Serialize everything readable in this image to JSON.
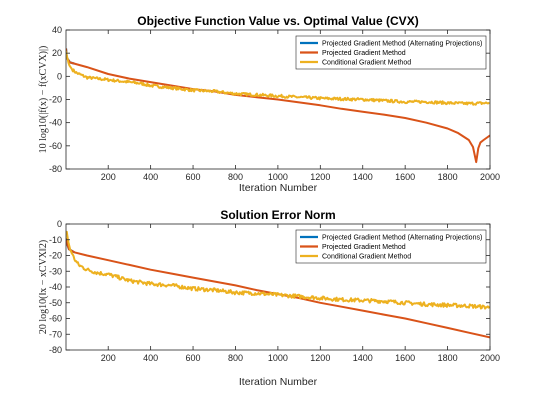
{
  "chart_data": [
    {
      "type": "line",
      "title": "Objective Function Value vs. Optimal Value (CVX)",
      "xlabel": "Iteration Number",
      "ylabel": "10 log10(|f(x) − f(xCVX)|)",
      "xlim": [
        1,
        2000
      ],
      "ylim": [
        -80,
        40
      ],
      "xticks": [
        200,
        400,
        600,
        800,
        1000,
        1200,
        1400,
        1600,
        1800,
        2000
      ],
      "yticks": [
        40,
        20,
        0,
        -20,
        -40,
        -60,
        -80
      ],
      "grid": false,
      "legend": "top-right",
      "series": [
        {
          "name": "Projected Gradient Method (Alternating Projections)",
          "color": "#0072BD",
          "x": [
            1,
            5,
            20,
            40
          ],
          "y": [
            24,
            16,
            12,
            11
          ]
        },
        {
          "name": "Projected Gradient Method",
          "color": "#D95319",
          "x": [
            1,
            5,
            20,
            40,
            100,
            200,
            300,
            400,
            500,
            600,
            700,
            800,
            900,
            1000,
            1100,
            1200,
            1300,
            1400,
            1500,
            1600,
            1700,
            1800,
            1850,
            1900,
            1920,
            1935,
            1945,
            1955,
            1970,
            2000
          ],
          "y": [
            24,
            16,
            12,
            11,
            8,
            2,
            -2,
            -5,
            -8,
            -11,
            -13,
            -16,
            -18,
            -20,
            -22.5,
            -25,
            -28,
            -30.5,
            -33,
            -36,
            -40,
            -45,
            -49,
            -55,
            -61,
            -74,
            -62,
            -57,
            -55,
            -51
          ]
        },
        {
          "name": "Conditional Gradient Method",
          "color": "#EDB120",
          "x": [
            1,
            5,
            15,
            30,
            50,
            100,
            150,
            200,
            250,
            300,
            350,
            400,
            450,
            500,
            600,
            700,
            800,
            900,
            1000,
            1100,
            1200,
            1300,
            1400,
            1500,
            1600,
            1700,
            1800,
            1900,
            2000
          ],
          "y": [
            22,
            18,
            10,
            6,
            3,
            -1,
            -2,
            -3,
            -4,
            -5,
            -6,
            -8,
            -9,
            -10,
            -12,
            -13,
            -15,
            -16,
            -17,
            -18,
            -19,
            -19.5,
            -20,
            -21,
            -22,
            -22,
            -23,
            -23.5,
            -23
          ]
        }
      ]
    },
    {
      "type": "line",
      "title": "Solution Error Norm",
      "xlabel": "Iteration Number",
      "ylabel": "20 log10(‖x − xCVX‖2)",
      "xlim": [
        1,
        2000
      ],
      "ylim": [
        -80,
        0
      ],
      "xticks": [
        200,
        400,
        600,
        800,
        1000,
        1200,
        1400,
        1600,
        1800,
        2000
      ],
      "yticks": [
        0,
        -10,
        -20,
        -30,
        -40,
        -50,
        -60,
        -70,
        -80
      ],
      "grid": false,
      "legend": "top-right",
      "series": [
        {
          "name": "Projected Gradient Method (Alternating Projections)",
          "color": "#0072BD",
          "x": [
            1,
            5,
            15,
            40
          ],
          "y": [
            -9,
            -12,
            -16,
            -18
          ]
        },
        {
          "name": "Projected Gradient Method",
          "color": "#D95319",
          "x": [
            1,
            5,
            15,
            40,
            100,
            200,
            300,
            400,
            500,
            600,
            700,
            800,
            900,
            1000,
            1100,
            1200,
            1300,
            1400,
            1500,
            1600,
            1700,
            1800,
            1900,
            2000
          ],
          "y": [
            -9,
            -12,
            -16,
            -18,
            -20,
            -23,
            -26,
            -29,
            -31.5,
            -34,
            -36.5,
            -39,
            -42,
            -44.5,
            -47,
            -50,
            -52.5,
            -55,
            -57.5,
            -60,
            -63,
            -66,
            -69,
            -72
          ]
        },
        {
          "name": "Conditional Gradient Method",
          "color": "#EDB120",
          "x": [
            1,
            5,
            10,
            20,
            40,
            60,
            100,
            150,
            200,
            250,
            300,
            350,
            400,
            500,
            600,
            700,
            800,
            900,
            1000,
            1100,
            1200,
            1300,
            1400,
            1500,
            1600,
            1700,
            1800,
            1900,
            2000
          ],
          "y": [
            -7,
            -5,
            -10,
            -16,
            -22,
            -26,
            -29,
            -31,
            -32,
            -34,
            -36,
            -37,
            -38,
            -39,
            -41,
            -42,
            -43.5,
            -44,
            -45,
            -46,
            -47,
            -48,
            -48.5,
            -49,
            -50,
            -51,
            -51.5,
            -52,
            -53
          ]
        }
      ]
    }
  ]
}
